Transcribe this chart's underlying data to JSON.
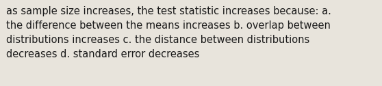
{
  "text": "as sample size increases, the test statistic increases because: a.\nthe difference between the means increases b. overlap between\ndistributions increases c. the distance between distributions\ndecreases d. standard error decreases",
  "background_color": "#e8e4dc",
  "text_color": "#1a1a1a",
  "font_size": 10.5,
  "fig_width": 5.58,
  "fig_height": 1.26,
  "dpi": 100
}
